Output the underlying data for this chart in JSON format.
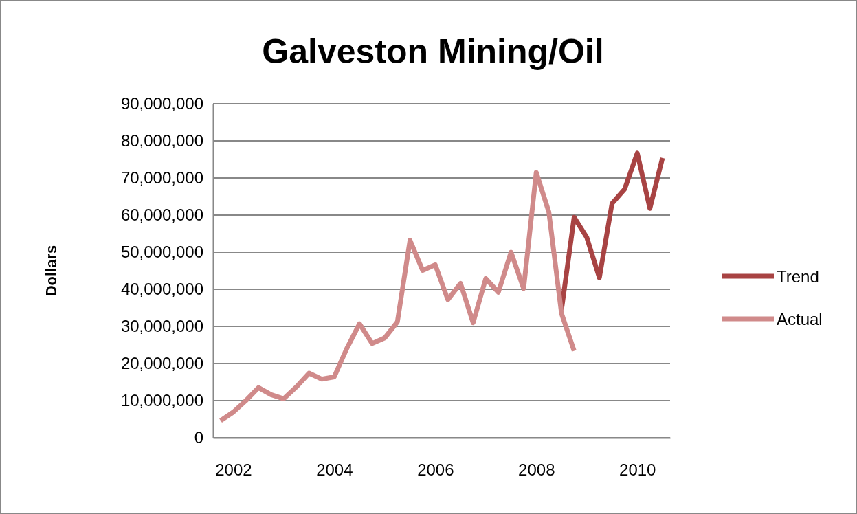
{
  "chart_data": {
    "type": "line",
    "title": "Galveston Mining/Oil",
    "ylabel": "Dollars",
    "xlim": [
      2001.6,
      2010.65
    ],
    "xticks": [
      2002,
      2004,
      2006,
      2008,
      2010
    ],
    "ylim": [
      0,
      90000000
    ],
    "yticks": [
      {
        "value": 0,
        "label": "0"
      },
      {
        "value": 10000000,
        "label": "10,000,000"
      },
      {
        "value": 20000000,
        "label": "20,000,000"
      },
      {
        "value": 30000000,
        "label": "30,000,000"
      },
      {
        "value": 40000000,
        "label": "40,000,000"
      },
      {
        "value": 50000000,
        "label": "50,000,000"
      },
      {
        "value": 60000000,
        "label": "60,000,000"
      },
      {
        "value": 70000000,
        "label": "70,000,000"
      },
      {
        "value": 80000000,
        "label": "80,000,000"
      },
      {
        "value": 90000000,
        "label": "90,000,000"
      }
    ],
    "grid": "y",
    "legend": "right",
    "marker": "none",
    "line_style": "solid",
    "series": [
      {
        "name": "Trend",
        "color": "#a84343",
        "x": [
          2008.5,
          2008.75,
          2009,
          2009.25,
          2009.5,
          2009.75,
          2010,
          2010.25,
          2010.5
        ],
        "values": [
          34500000,
          59400000,
          54000000,
          43100000,
          63100000,
          67000000,
          76700000,
          61800000,
          75400000
        ]
      },
      {
        "name": "Actual",
        "color": "#d08a8a",
        "x": [
          2001.75,
          2002,
          2002.25,
          2002.5,
          2002.75,
          2003,
          2003.25,
          2003.5,
          2003.75,
          2004,
          2004.25,
          2004.5,
          2004.75,
          2005,
          2005.25,
          2005.5,
          2005.75,
          2006,
          2006.25,
          2006.5,
          2006.75,
          2007,
          2007.25,
          2007.5,
          2007.75,
          2008,
          2008.25,
          2008.5,
          2008.75
        ],
        "values": [
          4600000,
          6900000,
          10000000,
          13500000,
          11600000,
          10500000,
          13700000,
          17400000,
          15800000,
          16400000,
          24100000,
          30700000,
          25400000,
          26900000,
          31200000,
          53200000,
          45100000,
          46600000,
          37200000,
          41600000,
          31000000,
          42900000,
          39200000,
          50000000,
          40200000,
          71500000,
          60800000,
          33500000,
          23400000
        ]
      }
    ]
  }
}
